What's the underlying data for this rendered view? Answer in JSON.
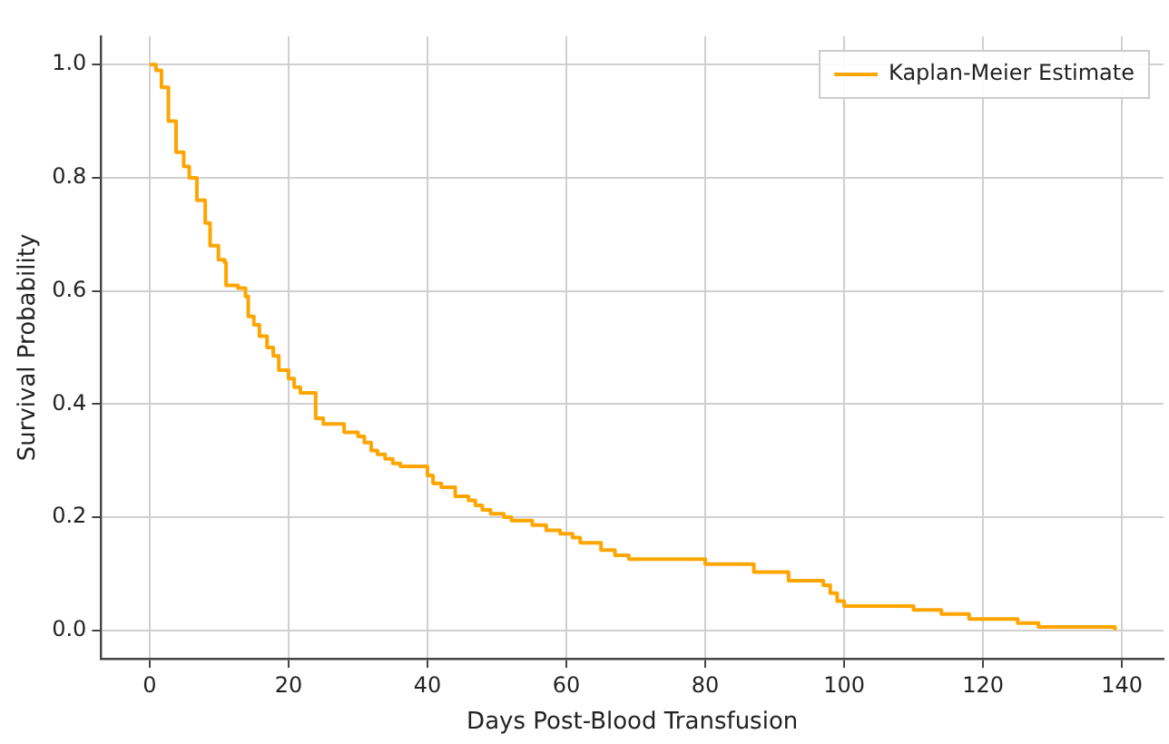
{
  "chart_data": {
    "type": "step",
    "xlabel": "Days Post-Blood Transfusion",
    "ylabel": "Survival Probability",
    "xlim": [
      -7,
      146
    ],
    "xticks": [
      0,
      20,
      40,
      60,
      80,
      100,
      120,
      140
    ],
    "ylim": [
      -0.05,
      1.05
    ],
    "yticks": [
      {
        "value": 0,
        "label": "0.0"
      },
      {
        "value": 0.2,
        "label": "0.2"
      },
      {
        "value": 0.4,
        "label": "0.4"
      },
      {
        "value": 0.6,
        "label": "0.6"
      },
      {
        "value": 0.8,
        "label": "0.8"
      },
      {
        "value": 1,
        "label": "1.0"
      }
    ],
    "grid": true,
    "legend": "top right",
    "marker": "none",
    "line_style": "solid",
    "series": [
      {
        "name": "Kaplan-Meier Estimate",
        "color": "#ffa500",
        "x": [
          0,
          0.9,
          1.7,
          2.7,
          3.8,
          4.9,
          5.7,
          6.8,
          8.0,
          8.7,
          9.9,
          10.8,
          11,
          12.7,
          13.8,
          14.2,
          15,
          15.8,
          16.9,
          17.8,
          18.6,
          20,
          20.8,
          21.7,
          23.9,
          25,
          28,
          30,
          30.9,
          31.9,
          32.8,
          33.9,
          35,
          36.1,
          40,
          40.8,
          42,
          44,
          45.9,
          46.9,
          47.9,
          49.1,
          51,
          52.1,
          55.1,
          57.1,
          59.1,
          60.9,
          62,
          65,
          67,
          69,
          80,
          87,
          92,
          97,
          98,
          99,
          100,
          110,
          114,
          118,
          125,
          128,
          139
        ],
        "values": [
          1.0,
          0.99,
          0.96,
          0.9,
          0.845,
          0.82,
          0.8,
          0.76,
          0.72,
          0.68,
          0.655,
          0.65,
          0.61,
          0.605,
          0.59,
          0.555,
          0.54,
          0.52,
          0.5,
          0.485,
          0.46,
          0.445,
          0.43,
          0.42,
          0.375,
          0.365,
          0.35,
          0.343,
          0.332,
          0.318,
          0.311,
          0.303,
          0.295,
          0.29,
          0.274,
          0.26,
          0.253,
          0.237,
          0.23,
          0.221,
          0.213,
          0.206,
          0.2,
          0.194,
          0.186,
          0.177,
          0.171,
          0.164,
          0.155,
          0.142,
          0.133,
          0.126,
          0.117,
          0.103,
          0.088,
          0.08,
          0.066,
          0.052,
          0.043,
          0.036,
          0.029,
          0.02,
          0.013,
          0.006,
          0.0
        ]
      }
    ]
  }
}
